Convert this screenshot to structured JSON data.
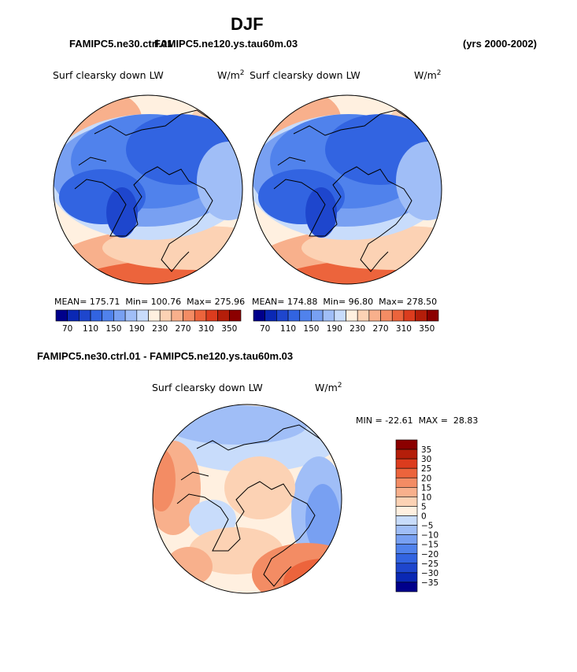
{
  "page": {
    "season_title": "DJF",
    "case_left": "FAMIPC5.ne30.ctrl.01",
    "case_right": "FAMIPC5.ne120.ys.tau60m.03",
    "years": "(yrs 2000-2002)",
    "diff_title": "FAMIPC5.ne30.ctrl.01 - FAMIPC5.ne120.ys.tau60m.03"
  },
  "panels": [
    {
      "variable": "Surf clearsky down LW",
      "units": "W/m",
      "units_sup": "2",
      "stats": {
        "mean_label": "MEAN=",
        "mean": "175.71",
        "min_label": "Min=",
        "min": "100.76",
        "max_label": "Max=",
        "max": "275.96"
      }
    },
    {
      "variable": "Surf clearsky down LW",
      "units": "W/m",
      "units_sup": "2",
      "stats": {
        "mean_label": "MEAN=",
        "mean": "174.88",
        "min_label": "Min=",
        "min": "96.80",
        "max_label": "Max=",
        "max": "278.50"
      }
    }
  ],
  "colorbar": {
    "labels": [
      "70",
      "110",
      "150",
      "190",
      "230",
      "270",
      "310",
      "350"
    ],
    "colors": [
      "#00008b",
      "#0a28b4",
      "#1e46cd",
      "#3264e1",
      "#5082ec",
      "#78a0f2",
      "#a0bef7",
      "#c8dcfb",
      "#fff0e0",
      "#fcd2b4",
      "#f8b08c",
      "#f38c64",
      "#ec643c",
      "#dc3c1e",
      "#b41e0a",
      "#8b0000"
    ]
  },
  "diff_panel": {
    "variable": "Surf clearsky down LW",
    "units": "W/m",
    "units_sup": "2",
    "min_label": "MIN =",
    "min": "-22.61",
    "max_label": "MAX =",
    "max": "28.83",
    "colorbar": {
      "labels": [
        "35",
        "30",
        "25",
        "20",
        "15",
        "10",
        "5",
        "0",
        "−5",
        "−10",
        "−15",
        "−20",
        "−25",
        "−30",
        "−35"
      ],
      "colors": [
        "#8b0000",
        "#b41e0a",
        "#dc3c1e",
        "#ec643c",
        "#f38c64",
        "#f8b08c",
        "#fcd2b4",
        "#fff0e0",
        "#c8dcfb",
        "#a0bef7",
        "#78a0f2",
        "#5082ec",
        "#3264e1",
        "#1e46cd",
        "#0a28b4",
        "#00008b"
      ]
    }
  }
}
